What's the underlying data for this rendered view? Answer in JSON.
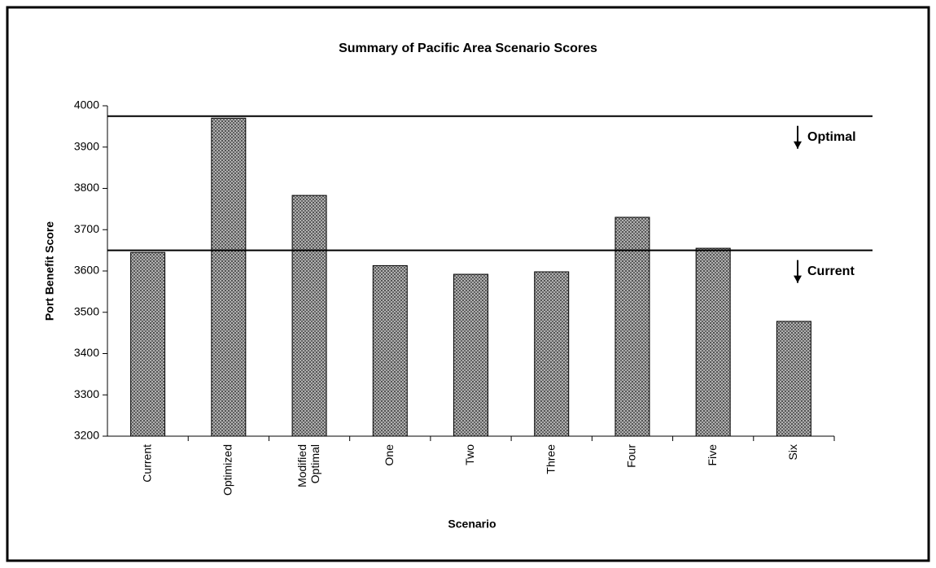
{
  "chart_data": {
    "type": "bar",
    "title": "Summary of Pacific Area Scenario Scores",
    "x_label": "Scenario",
    "y_label": "Port Benefit Score",
    "categories": [
      "Current",
      "Optimized",
      "Modified Optimal",
      "One",
      "Two",
      "Three",
      "Four",
      "Five",
      "Six"
    ],
    "values": [
      3645,
      3970,
      3783,
      3613,
      3592,
      3598,
      3730,
      3655,
      3478
    ],
    "color": "#8f8f8f",
    "ylim": [
      3200,
      4000
    ],
    "yticks": [
      3200,
      3300,
      3400,
      3500,
      3600,
      3700,
      3800,
      3900,
      4000
    ],
    "grid": false,
    "reference_lines": [
      {
        "label": "Optimal",
        "value": 3975
      },
      {
        "label": "Current",
        "value": 3650
      }
    ]
  }
}
